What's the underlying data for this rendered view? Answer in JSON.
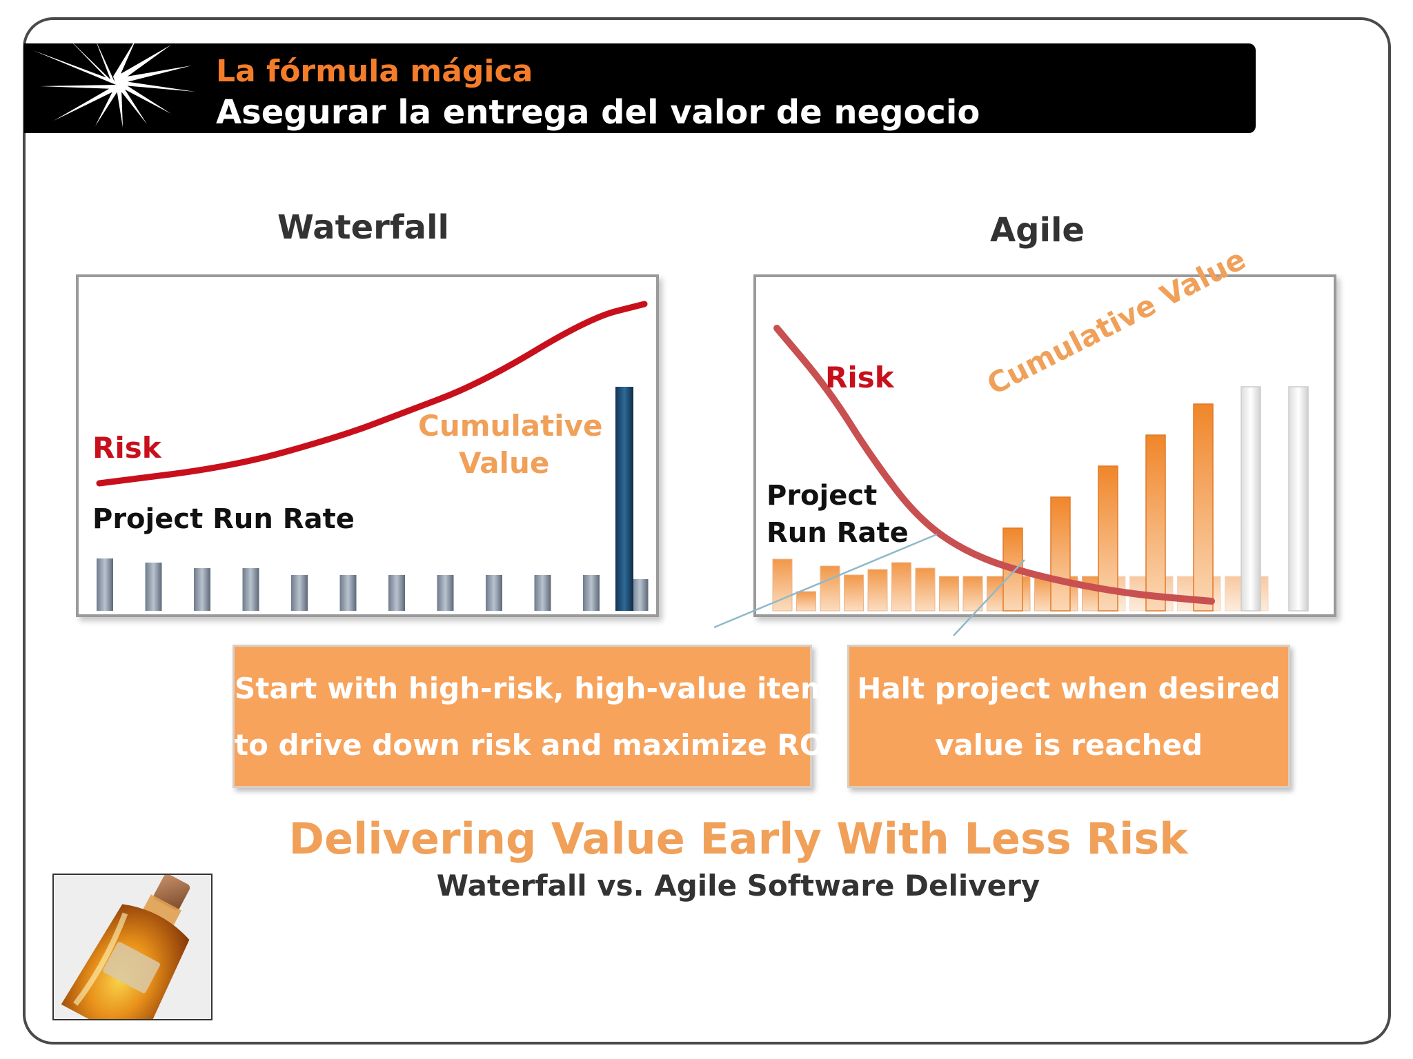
{
  "header": {
    "title": "La fórmula mágica",
    "subtitle": "Asegurar la entrega del valor de negocio"
  },
  "waterfall": {
    "title": "Waterfall",
    "risk_label": "Risk",
    "value_label_line1": "Cumulative",
    "value_label_line2": "Value",
    "runrate_label": "Project Run Rate",
    "risk_color": "#c8101c",
    "value_color": "#f0a058",
    "runrate_bar_color": "#8a97a8",
    "value_bar_color": "#1c4a70",
    "runrate_values": [
      0.76,
      0.7,
      0.62,
      0.62,
      0.52,
      0.52,
      0.52,
      0.52,
      0.52,
      0.52,
      0.52,
      0.46
    ],
    "value_bar": 3.25,
    "risk_curve": [
      [
        0.0,
        1.85
      ],
      [
        0.25,
        2.1
      ],
      [
        0.45,
        2.55
      ],
      [
        0.55,
        2.85
      ],
      [
        0.7,
        3.3
      ],
      [
        0.9,
        4.25
      ],
      [
        1.0,
        4.45
      ]
    ]
  },
  "agile": {
    "title": "Agile",
    "risk_label": "Risk",
    "value_label": "Cumulative Value",
    "runrate_label_line1": "Project",
    "runrate_label_line2": "Run Rate",
    "risk_color": "#c85050",
    "value_color": "#f0a058",
    "bar_color": "#f0923a",
    "small_bar_values": [
      0.75,
      0.28,
      0.65,
      0.52,
      0.6,
      0.7,
      0.62,
      0.5,
      0.5,
      0.5,
      0.5,
      0.5,
      0.5,
      0.5,
      0.5,
      0.5,
      0.5,
      0.5,
      0.5,
      0.5,
      0.5
    ],
    "cumulative_values": [
      1.2,
      1.65,
      2.1,
      2.55,
      3.0
    ],
    "future_values": [
      3.25,
      3.25
    ],
    "risk_curve": [
      [
        0.0,
        4.1
      ],
      [
        0.12,
        3.2
      ],
      [
        0.22,
        2.2
      ],
      [
        0.33,
        1.3
      ],
      [
        0.45,
        0.8
      ],
      [
        0.6,
        0.5
      ],
      [
        0.8,
        0.25
      ],
      [
        1.0,
        0.14
      ]
    ]
  },
  "callouts": {
    "left_line1": "Start with high-risk, high-value items",
    "left_line2": "to drive down risk and maximize ROI",
    "right_line1": "Halt project when desired",
    "right_line2": "value is reached",
    "fill_color": "#f7a35c"
  },
  "footer": {
    "heading": "Delivering Value Early With Less Risk",
    "subheading": "Waterfall vs. Agile Software Delivery"
  }
}
